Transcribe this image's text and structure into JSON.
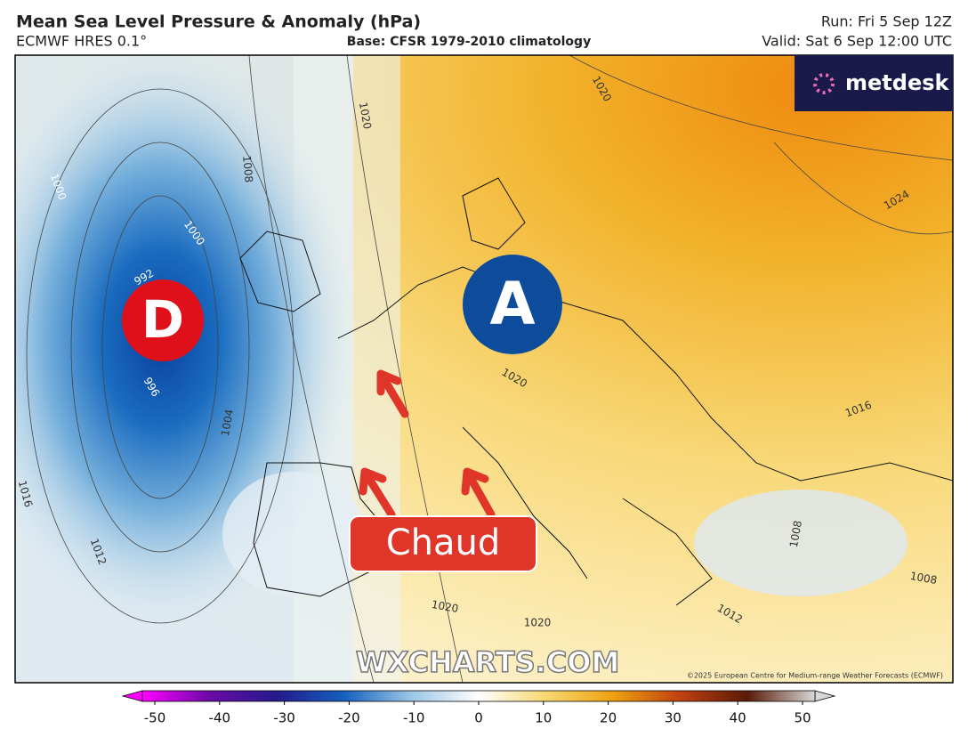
{
  "header": {
    "title": "Mean Sea Level Pressure & Anomaly (hPa)",
    "model": "ECMWF HRES 0.1°",
    "base": "Base: CFSR 1979-2010 climatology",
    "run": "Run: Fri 5 Sep 12Z",
    "valid": "Valid: Sat 6 Sep 12:00 UTC"
  },
  "logo": "metdesk",
  "map": {
    "low_label": "D",
    "high_label": "A",
    "callout": "Chaud",
    "contour_labels": [
      "1020",
      "1020",
      "1024",
      "1008",
      "1000",
      "1000",
      "992",
      "996",
      "1004",
      "1016",
      "1012",
      "1020",
      "1020",
      "1012",
      "1016",
      "1020",
      "1008",
      "1008"
    ]
  },
  "watermark": "WXCHARTS.COM",
  "copyright": "©2025 European Centre for Medium-range Weather Forecasts (ECMWF)",
  "colorbar": {
    "range": [
      -50,
      50
    ],
    "ticks": [
      -50,
      -40,
      -30,
      -20,
      -10,
      0,
      10,
      20,
      30,
      40,
      50
    ],
    "colors": [
      "#ff00ff",
      "#6a0aa8",
      "#241a8c",
      "#1560c0",
      "#9cc6e6",
      "#ffffff",
      "#f7d870",
      "#eea010",
      "#c04010",
      "#5a1a08",
      "#d8d8d8"
    ]
  }
}
